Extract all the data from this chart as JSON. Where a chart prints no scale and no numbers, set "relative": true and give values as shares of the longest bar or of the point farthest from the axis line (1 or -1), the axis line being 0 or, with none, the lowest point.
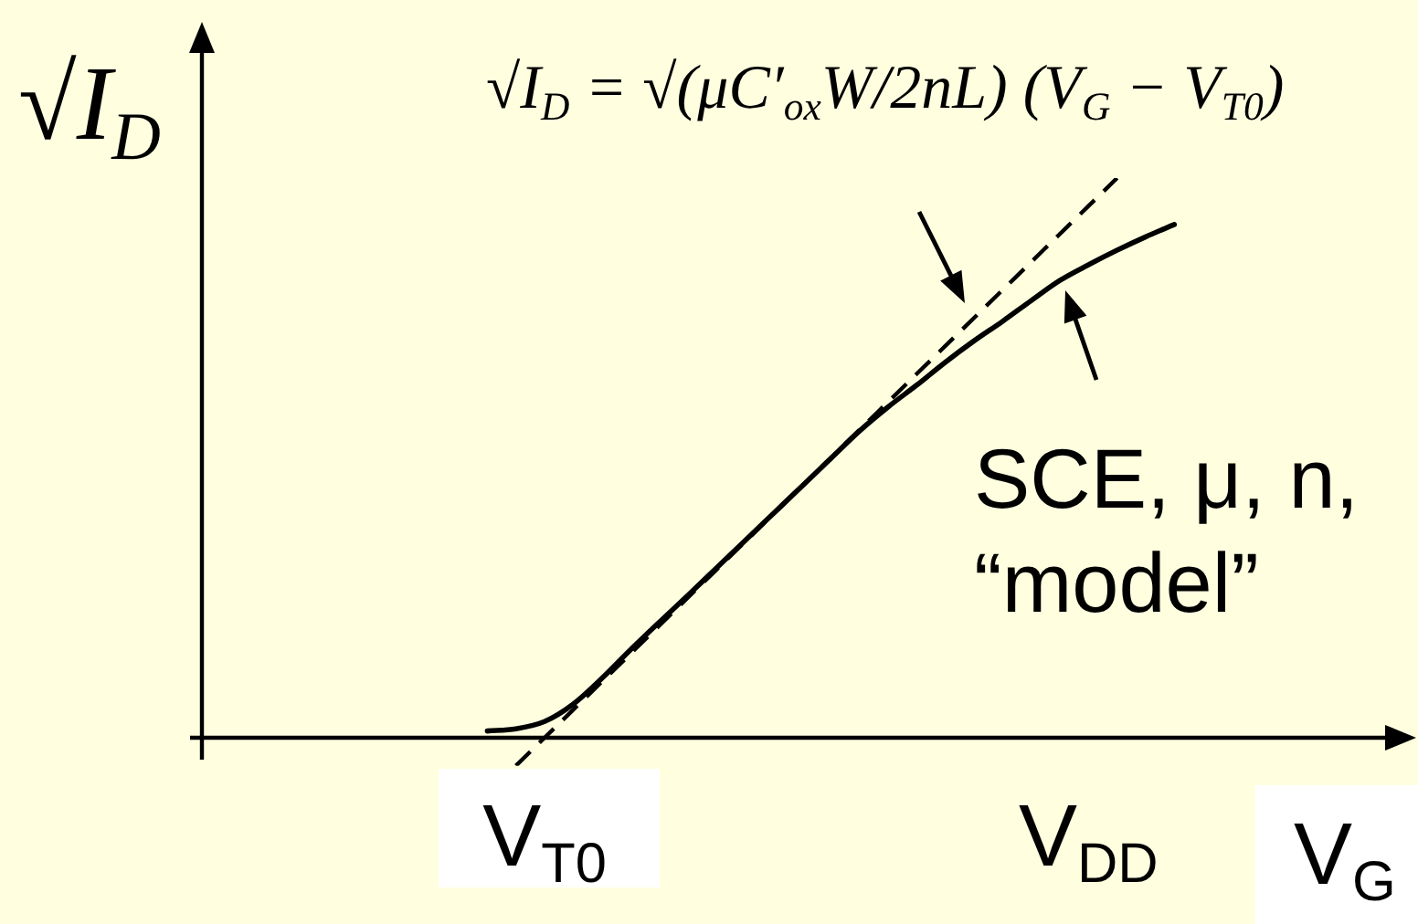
{
  "chart_data": {
    "type": "line",
    "relative": true,
    "ylabel": "√I$_{D}$",
    "xlabel": "V$_{G}$",
    "marker": "none",
    "tick_labels": "x",
    "categories": [
      null,
      null,
      null,
      null,
      null,
      null,
      null,
      null,
      null,
      null,
      null,
      null,
      "V$_{T0}$",
      null,
      null,
      null,
      null,
      null,
      null,
      null,
      null,
      null,
      null,
      null,
      null,
      null,
      null,
      null,
      null,
      null,
      null,
      "V$_{DD}$",
      null,
      null,
      null,
      null,
      null,
      null,
      null,
      null,
      null,
      null,
      null
    ],
    "series": [
      {
        "color": "#000000",
        "line_style": "solid",
        "values": [
          null,
          null,
          null,
          null,
          null,
          null,
          null,
          null,
          null,
          null,
          0.012,
          0.016,
          0.029,
          0.06,
          0.106,
          0.157,
          0.206,
          0.254,
          0.303,
          0.352,
          0.401,
          0.45,
          0.499,
          0.548,
          0.591,
          0.63,
          0.671,
          0.709,
          0.744,
          0.781,
          0.817,
          0.845,
          0.871,
          0.895,
          0.917,
          null,
          null,
          null,
          null,
          null,
          null,
          null,
          null
        ]
      },
      {
        "color": "#000000",
        "line_style": "dashed",
        "values": [
          null,
          null,
          null,
          null,
          null,
          null,
          null,
          null,
          null,
          null,
          null,
          -0.05,
          0,
          0.05,
          0.1,
          0.15,
          0.2,
          0.25,
          0.3,
          0.35,
          0.4,
          0.45,
          0.5,
          0.55,
          0.6,
          0.65,
          0.7,
          0.75,
          0.8,
          0.85,
          0.9,
          0.95,
          1,
          null,
          null,
          null,
          null,
          null,
          null,
          null,
          null,
          null,
          null
        ]
      }
    ],
    "annotations": [
      "√I$_{D}$ = √(μC′$_{ox}$W/2nL) (V$_{G}$ − V$_{T0}$)",
      "SCE, μ, n, “model”"
    ]
  }
}
